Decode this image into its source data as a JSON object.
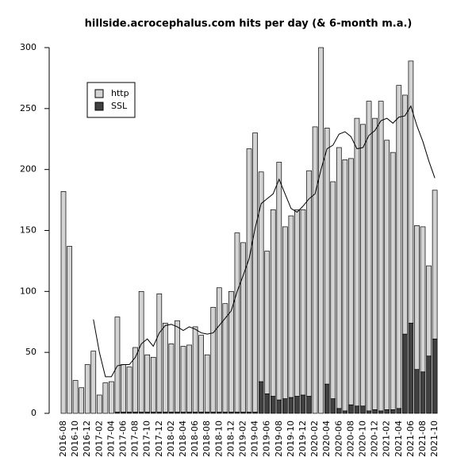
{
  "chart_data": {
    "type": "bar",
    "stacked": true,
    "title": "hillside.acrocephalus.com hits per day (& 6-month m.a.)",
    "categories": [
      "2016-08",
      null,
      "2016-10",
      null,
      "2016-12",
      null,
      "2017-02",
      null,
      "2017-04",
      null,
      "2017-06",
      null,
      "2017-08",
      null,
      "2017-10",
      null,
      "2017-12",
      null,
      "2018-02",
      null,
      "2018-04",
      null,
      "2018-06",
      null,
      "2018-08",
      null,
      "2018-10",
      null,
      "2018-12",
      null,
      "2019-02",
      null,
      "2019-04",
      null,
      "2019-06",
      null,
      "2019-08",
      null,
      "2019-10",
      null,
      "2019-12",
      null,
      "2020-02",
      null,
      "2020-04",
      null,
      "2020-06",
      null,
      "2020-08",
      null,
      "2020-10",
      null,
      "2020-12",
      null,
      "2021-02",
      null,
      "2021-04",
      null,
      "2021-06",
      null,
      "2021-08",
      null,
      "2021-10"
    ],
    "series": [
      {
        "name": "SSL",
        "color": "#404040",
        "values": [
          0,
          0,
          0,
          0,
          0,
          0,
          0,
          0,
          0,
          1,
          1,
          1,
          1,
          1,
          1,
          1,
          1,
          1,
          1,
          1,
          1,
          1,
          1,
          1,
          1,
          1,
          1,
          1,
          1,
          1,
          1,
          1,
          1,
          26,
          16,
          14,
          11,
          12,
          13,
          14,
          15,
          14,
          0,
          0,
          24,
          12,
          4,
          2,
          7,
          6,
          6,
          2,
          3,
          2,
          3,
          3,
          4,
          65,
          74,
          36,
          34,
          47,
          61
        ]
      },
      {
        "name": "http",
        "color": "#d3d3d3",
        "values": [
          182,
          137,
          27,
          21,
          40,
          51,
          15,
          25,
          26,
          78,
          39,
          37,
          53,
          99,
          47,
          45,
          97,
          73,
          56,
          75,
          54,
          55,
          70,
          63,
          47,
          86,
          102,
          89,
          99,
          147,
          139,
          216,
          229,
          172,
          117,
          153,
          195,
          141,
          149,
          153,
          152,
          185,
          235,
          300,
          210,
          178,
          214,
          206,
          202,
          236,
          231,
          254,
          239,
          254,
          221,
          211,
          265,
          196,
          215,
          118,
          119,
          74,
          122
        ]
      }
    ],
    "line": {
      "color": "#000000",
      "values": [
        null,
        null,
        null,
        null,
        null,
        77,
        50,
        30,
        30,
        39,
        40,
        40,
        46,
        57,
        61,
        55,
        66,
        72,
        73,
        71,
        68,
        71,
        69,
        66,
        65,
        66,
        72,
        78,
        84,
        100,
        113,
        127,
        152,
        172,
        176,
        180,
        192,
        180,
        168,
        165,
        170,
        176,
        180,
        200,
        217,
        220,
        229,
        231,
        227,
        217,
        218,
        228,
        232,
        240,
        242,
        238,
        243,
        244,
        252,
        236,
        223,
        207,
        193
      ]
    },
    "ylim": [
      0,
      300
    ],
    "yticks": [
      0,
      50,
      100,
      150,
      200,
      250,
      300
    ],
    "grid": false,
    "legend": "top-left"
  }
}
